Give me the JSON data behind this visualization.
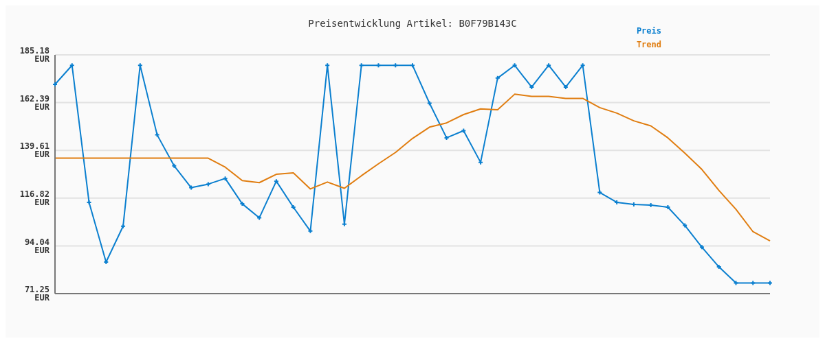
{
  "chart_data": {
    "type": "line",
    "title": "Preisentwicklung Artikel: B0F79B143C",
    "categories": [
      null,
      null,
      null,
      null,
      null,
      null,
      null,
      null,
      null,
      null,
      null,
      null,
      null,
      null,
      null,
      null,
      null,
      null,
      null,
      null,
      null,
      null,
      null,
      null,
      null,
      null,
      null,
      null,
      null,
      null,
      null,
      null,
      null,
      null,
      null,
      null,
      null,
      null,
      null,
      null,
      null,
      null,
      null
    ],
    "series": [
      {
        "name": "Preis",
        "color": "#0a7fcf",
        "marker": "cross",
        "values": [
          171.1,
          180.2,
          114.8,
          86.3,
          103.4,
          180.2,
          147.0,
          132.2,
          121.8,
          123.5,
          126.2,
          114.1,
          107.4,
          124.9,
          112.5,
          101.1,
          180.2,
          104.4,
          180.2,
          180.2,
          180.2,
          180.2,
          162.1,
          145.6,
          149.0,
          133.9,
          174.1,
          180.2,
          169.8,
          180.2,
          169.8,
          180.2,
          119.5,
          114.8,
          113.8,
          113.5,
          112.5,
          103.8,
          93.4,
          84.0,
          76.3,
          76.3,
          76.3
        ]
      },
      {
        "name": "Trend",
        "color": "#e07d10",
        "marker": "none",
        "values": [
          135.9,
          135.9,
          135.9,
          135.9,
          135.9,
          135.9,
          135.9,
          135.9,
          135.9,
          135.9,
          131.6,
          125.2,
          124.2,
          128.2,
          128.9,
          121.2,
          124.5,
          121.5,
          127.5,
          133.2,
          138.6,
          145.3,
          150.7,
          152.7,
          156.7,
          159.4,
          159.0,
          166.4,
          165.4,
          165.4,
          164.4,
          164.4,
          160.0,
          157.4,
          153.7,
          151.3,
          145.6,
          138.3,
          130.5,
          120.5,
          111.5,
          100.8,
          96.4
        ]
      }
    ],
    "ylim": [
      71.25,
      185.18
    ],
    "yticks": [
      {
        "value": 71.25,
        "label": "71.25 EUR"
      },
      {
        "value": 94.04,
        "label": "94.04 EUR"
      },
      {
        "value": 116.82,
        "label": "116.82 EUR"
      },
      {
        "value": 139.61,
        "label": "139.61 EUR"
      },
      {
        "value": 162.39,
        "label": "162.39 EUR"
      },
      {
        "value": 185.18,
        "label": "185.18 EUR"
      }
    ],
    "grid": "y",
    "legend": "top right",
    "line_style": "solid"
  }
}
